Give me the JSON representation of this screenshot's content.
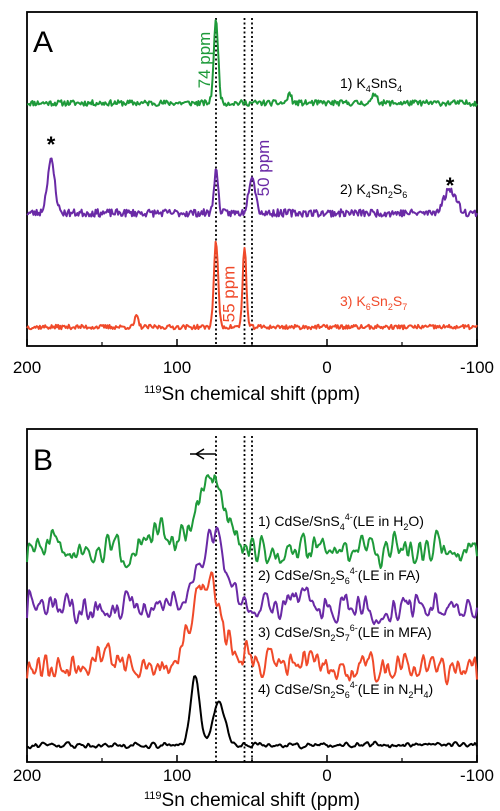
{
  "chart_data": [
    {
      "panel": "A",
      "type": "line",
      "xlabel_sup": "119",
      "xlabel_main": "Sn chemical shift (ppm)",
      "xlim": [
        200,
        -100
      ],
      "xticks": [
        200,
        100,
        0,
        -100
      ],
      "reference_lines_ppm": [
        74,
        55,
        50
      ],
      "annotations": [
        {
          "text": "74 ppm",
          "x": 74,
          "color": "#1e9a3a"
        },
        {
          "text": "50 ppm",
          "x": 50,
          "color": "#6a2aa6"
        },
        {
          "text": "55 ppm",
          "x": 55,
          "color": "#f04a2a"
        },
        {
          "text": "*",
          "x": 184
        },
        {
          "text": "*",
          "x": -82
        }
      ],
      "series": [
        {
          "label": "1) K4SnS4",
          "label_parts": [
            [
              "1) K",
              ""
            ],
            [
              "4",
              "sub"
            ],
            [
              "SnS",
              ""
            ],
            [
              "4",
              "sub"
            ]
          ],
          "color": "#1e9a3a",
          "label_color": "#000000",
          "peaks": [
            [
              74,
              1.0,
              1.5
            ],
            [
              25,
              0.12,
              1.2
            ],
            [
              -32,
              0.12,
              1.5
            ]
          ],
          "noise": 0.035,
          "seed": 11
        },
        {
          "label": "2) K4Sn2S6",
          "label_parts": [
            [
              "2) K",
              ""
            ],
            [
              "4",
              "sub"
            ],
            [
              "Sn",
              ""
            ],
            [
              "2",
              "sub"
            ],
            [
              "S",
              ""
            ],
            [
              "6",
              "sub"
            ]
          ],
          "color": "#6a2aa6",
          "label_color": "#000000",
          "peaks": [
            [
              184,
              0.55,
              2.5
            ],
            [
              74,
              0.45,
              1.4
            ],
            [
              50,
              0.4,
              2.2
            ],
            [
              -82,
              0.25,
              4.0
            ]
          ],
          "noise": 0.04,
          "seed": 23
        },
        {
          "label": "3) K6Sn2S7",
          "label_parts": [
            [
              "3) K",
              ""
            ],
            [
              "6",
              "sub"
            ],
            [
              "Sn",
              ""
            ],
            [
              "2",
              "sub"
            ],
            [
              "S",
              ""
            ],
            [
              "7",
              "sub"
            ]
          ],
          "color": "#f04a2a",
          "label_color": "#f04a2a",
          "peaks": [
            [
              74,
              0.95,
              1.4
            ],
            [
              55,
              0.9,
              1.2
            ],
            [
              127,
              0.12,
              1.2
            ]
          ],
          "noise": 0.025,
          "seed": 37
        }
      ]
    },
    {
      "panel": "B",
      "type": "line",
      "xlabel_sup": "119",
      "xlabel_main": "Sn chemical shift (ppm)",
      "xlim": [
        200,
        -100
      ],
      "xticks": [
        200,
        100,
        0,
        -100
      ],
      "reference_lines_ppm": [
        74,
        55,
        50
      ],
      "arrow": {
        "from": 74,
        "to": 90
      },
      "series": [
        {
          "label": "1) CdSe/SnS44-(LE in H2O)",
          "label_parts": [
            [
              "1) CdSe/SnS",
              ""
            ],
            [
              "4",
              "sub"
            ],
            [
              "4-",
              "sup"
            ],
            [
              "(LE in H",
              ""
            ],
            [
              "2",
              "sub"
            ],
            [
              "O)",
              ""
            ]
          ],
          "color": "#1e9a3a",
          "label_color": "#000000",
          "peaks": [
            [
              78,
              0.75,
              9
            ],
            [
              110,
              0.15,
              6
            ]
          ],
          "noise": 0.1,
          "seed": 51,
          "smooth": 3
        },
        {
          "label": "2) CdSe/Sn2S64-(LE in FA)",
          "label_parts": [
            [
              "2) CdSe/Sn",
              ""
            ],
            [
              "2",
              "sub"
            ],
            [
              "S",
              ""
            ],
            [
              "6",
              "sub"
            ],
            [
              "4-",
              "sup"
            ],
            [
              "(LE in FA)",
              ""
            ]
          ],
          "color": "#6a2aa6",
          "label_color": "#000000",
          "peaks": [
            [
              76,
              0.75,
              8
            ],
            [
              15,
              0.3,
              3
            ]
          ],
          "noise": 0.09,
          "seed": 63,
          "smooth": 3
        },
        {
          "label": "3) CdSe/Sn2S76-(LE in MFA)",
          "label_parts": [
            [
              "3) CdSe/Sn",
              ""
            ],
            [
              "2",
              "sub"
            ],
            [
              "S",
              ""
            ],
            [
              "7",
              "sub"
            ],
            [
              "6-",
              "sup"
            ],
            [
              "(LE in MFA)",
              ""
            ]
          ],
          "color": "#f04a2a",
          "label_color": "#000000",
          "peaks": [
            [
              80,
              0.9,
              10
            ],
            [
              52,
              0.2,
              3
            ],
            [
              150,
              0.18,
              5
            ]
          ],
          "noise": 0.1,
          "seed": 79,
          "smooth": 3
        },
        {
          "label": "4) CdSe/Sn2S64-(LE in N2H4)",
          "label_parts": [
            [
              "4) CdSe/Sn",
              ""
            ],
            [
              "2",
              "sub"
            ],
            [
              "S",
              ""
            ],
            [
              "6",
              "sub"
            ],
            [
              "4-",
              "sup"
            ],
            [
              "(LE in N",
              ""
            ],
            [
              "2",
              "sub"
            ],
            [
              "H",
              ""
            ],
            [
              "4",
              "sub"
            ],
            [
              ")",
              ""
            ]
          ],
          "color": "#000000",
          "label_color": "#000000",
          "peaks": [
            [
              88,
              1.0,
              3
            ],
            [
              72,
              0.6,
              4
            ]
          ],
          "noise": 0.02,
          "seed": 91,
          "smooth": 2
        }
      ]
    }
  ]
}
